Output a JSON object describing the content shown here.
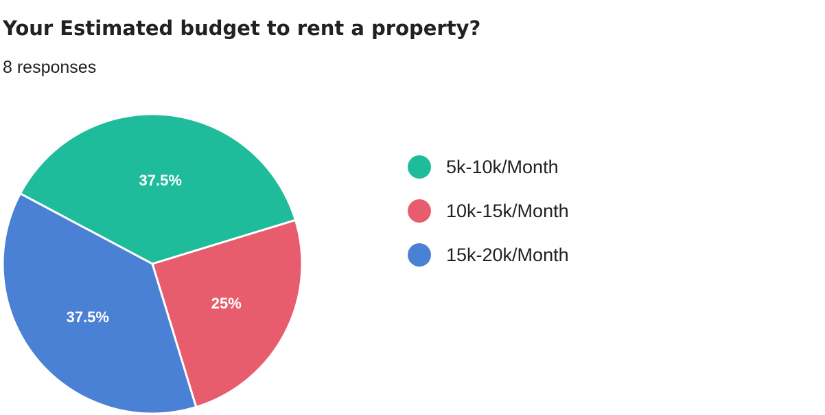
{
  "chart_data": {
    "type": "pie",
    "title": "Your Estimated budget to rent a property?",
    "subtitle": "8 responses",
    "categories": [
      "5k-10k/Month",
      "10k-15k/Month",
      "15k-20k/Month"
    ],
    "values": [
      3,
      2,
      3
    ],
    "percent_labels": [
      "37.5%",
      "25%",
      "37.5%"
    ],
    "colors": [
      "#1fbc9c",
      "#e85d6e",
      "#4a81d4"
    ],
    "legend_position": "right"
  }
}
